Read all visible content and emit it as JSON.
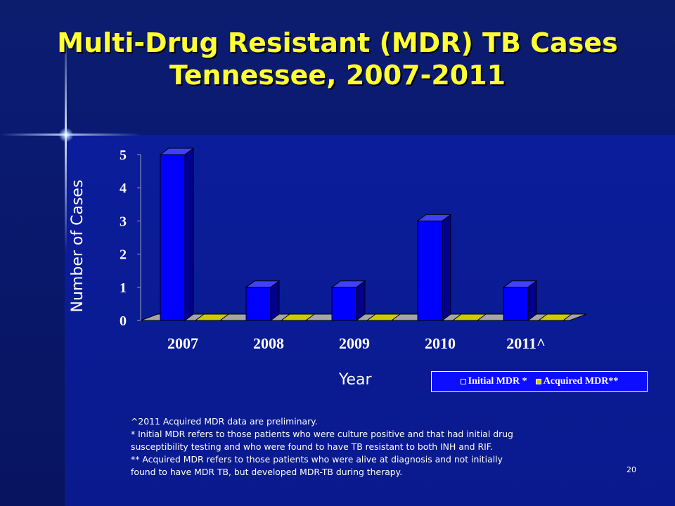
{
  "slide": {
    "title_line1": "Multi-Drug Resistant (MDR) TB Cases",
    "title_line2": "Tennessee, 2007-2011",
    "page_number": "20",
    "footnotes": [
      "^2011 Acquired MDR data are preliminary.",
      "* Initial MDR refers to those patients who were culture positive and that had initial drug",
      "susceptibility testing and who were found to have TB resistant to both INH and RIF.",
      "** Acquired MDR refers to those patients who were alive at diagnosis and not initially",
      "found to have MDR TB, but developed MDR-TB during therapy."
    ]
  },
  "chart_data": {
    "type": "bar",
    "title": "Multi-Drug Resistant (MDR) TB Cases Tennessee, 2007-2011",
    "xlabel": "Year",
    "ylabel": "Number of Cases",
    "categories": [
      "2007",
      "2008",
      "2009",
      "2010",
      "2011^"
    ],
    "series": [
      {
        "name": "Initial MDR *",
        "values": [
          5,
          1,
          1,
          3,
          1
        ],
        "color": "#0000ff"
      },
      {
        "name": "Acquired MDR**",
        "values": [
          0,
          0,
          0,
          0,
          0
        ],
        "color": "#cccc00"
      }
    ],
    "yticks": [
      "0",
      "1",
      "2",
      "3",
      "4",
      "5"
    ],
    "ylim": [
      0,
      5
    ],
    "grid": false,
    "legend_position": "bottom-right",
    "three_d": true
  }
}
